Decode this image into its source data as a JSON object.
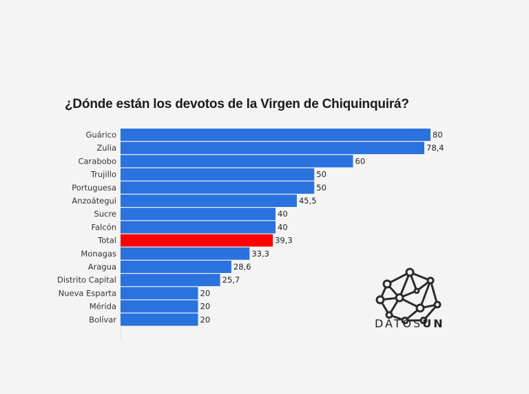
{
  "chart_data": {
    "type": "bar",
    "orientation": "horizontal",
    "title": "¿Dónde están los devotos de la Virgen de Chiquinquirá?",
    "categories": [
      "Guárico",
      "Zulia",
      "Carabobo",
      "Trujillo",
      "Portuguesa",
      "Anzoátegui",
      "Sucre",
      "Falcón",
      "Total",
      "Monagas",
      "Aragua",
      "Distrito Capital",
      "Nueva Esparta",
      "Mérida",
      "Bolívar"
    ],
    "values": [
      80,
      78.4,
      60,
      50,
      50,
      45.5,
      40,
      40,
      39.3,
      33.3,
      28.6,
      25.7,
      20,
      20,
      20
    ],
    "data_labels": [
      "80",
      "78,4",
      "60",
      "50",
      "50",
      "45,5",
      "40",
      "40",
      "39,3",
      "33,3",
      "28,6",
      "25,7",
      "20",
      "20",
      "20"
    ],
    "highlight_category": "Total",
    "colors": {
      "bar": "#2a72de",
      "highlight": "#ff0000"
    },
    "xlim": [
      0,
      80
    ],
    "grid": false
  },
  "logo": {
    "text_light": "DATOS",
    "text_bold": "UN"
  }
}
